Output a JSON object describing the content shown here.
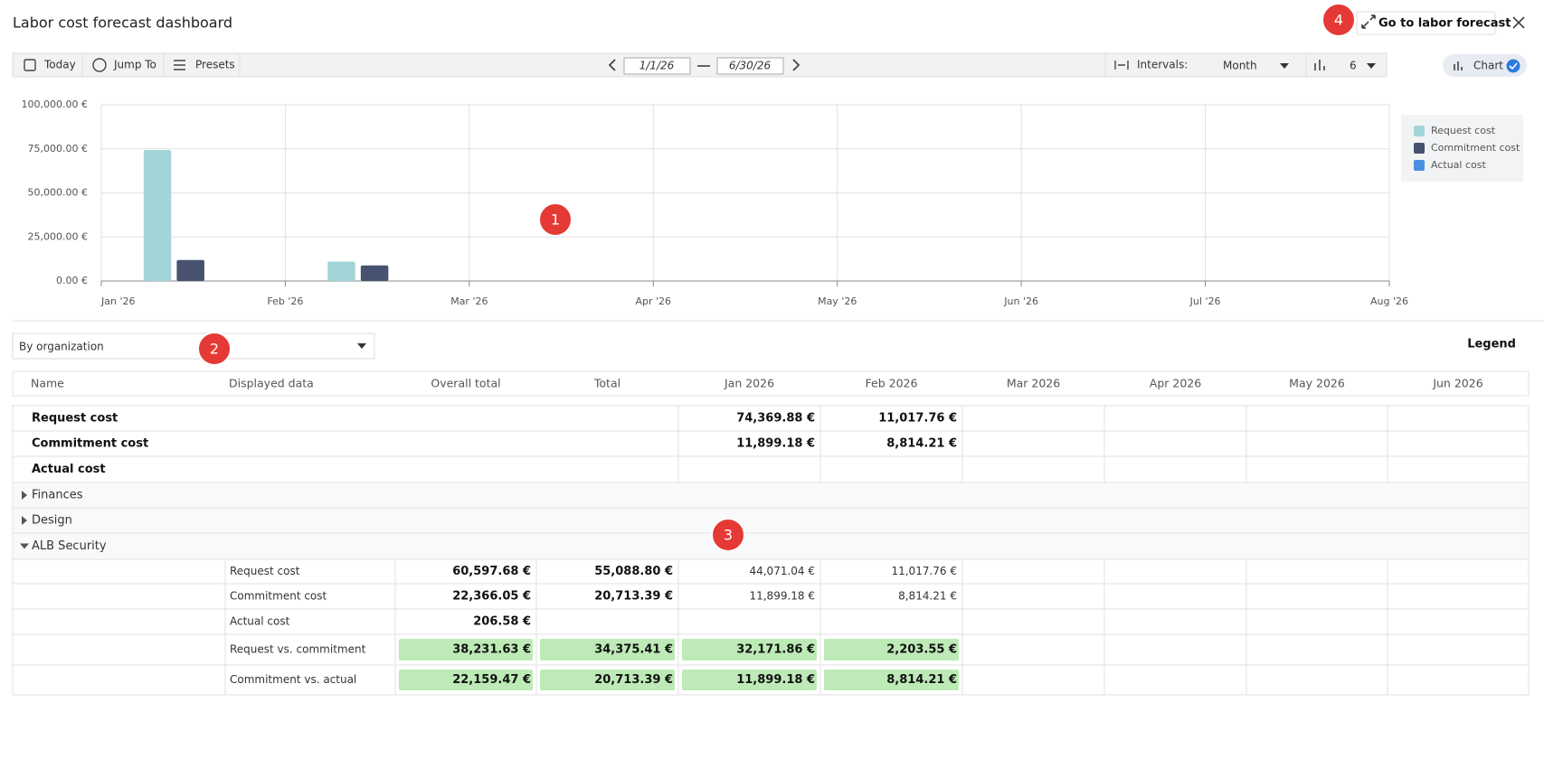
{
  "header": {
    "title": "Labor cost forecast dashboard",
    "go_button": "Go to labor forecast"
  },
  "toolbar": {
    "today": "Today",
    "jump_to": "Jump To",
    "presets": "Presets",
    "start_date": "1/1/26",
    "end_date": "6/30/26",
    "intervals_label": "Intervals:",
    "interval": "Month",
    "count": "6",
    "chart_toggle": "Chart"
  },
  "annotations": [
    "1",
    "2",
    "3",
    "4"
  ],
  "chart_data": {
    "type": "bar",
    "categories": [
      "Jan '26",
      "Feb '26",
      "Mar '26",
      "Apr '26",
      "May '26",
      "Jun '26",
      "Jul '26",
      "Aug '26"
    ],
    "series": [
      {
        "name": "Request cost",
        "color": "#a3d5d8",
        "values": [
          74369.88,
          11017.76,
          null,
          null,
          null,
          null,
          null,
          null
        ]
      },
      {
        "name": "Commitment cost",
        "color": "#46526f",
        "values": [
          11899.18,
          8814.21,
          null,
          null,
          null,
          null,
          null,
          null
        ]
      },
      {
        "name": "Actual cost",
        "color": "#4a8fe0",
        "values": [
          null,
          null,
          null,
          null,
          null,
          null,
          null,
          null
        ]
      }
    ],
    "ylim": [
      0,
      100000
    ],
    "yticks": [
      {
        "value": 0,
        "label": "0.00 €"
      },
      {
        "value": 25000,
        "label": "25,000.00 €"
      },
      {
        "value": 50000,
        "label": "50,000.00 €"
      },
      {
        "value": 75000,
        "label": "75,000.00 €"
      },
      {
        "value": 100000,
        "label": "100,000.00 €"
      }
    ],
    "grid": true,
    "legend": "right"
  },
  "grouping": {
    "selected": "By organization",
    "legend_link": "Legend"
  },
  "table": {
    "columns": [
      "Name",
      "Displayed data",
      "Overall total",
      "Total",
      "Jan 2026",
      "Feb 2026",
      "Mar 2026",
      "Apr 2026",
      "May 2026",
      "Jun 2026"
    ],
    "summary_rows": [
      [
        "Request cost",
        "74,369.88 €",
        "11,017.76 €"
      ],
      [
        "Commitment cost",
        "11,899.18 €",
        "8,814.21 €"
      ],
      [
        "Actual cost"
      ]
    ],
    "groups": [
      "Finances",
      "Design",
      "ALB Security"
    ],
    "detail_rows": [
      [
        "Request cost",
        "60,597.68 €",
        "55,088.80 €",
        "44,071.04 €",
        "11,017.76 €"
      ],
      [
        "Commitment cost",
        "22,366.05 €",
        "20,713.39 €",
        "11,899.18 €",
        "8,814.21 €"
      ],
      [
        "Actual cost",
        "206.58 €"
      ],
      [
        "Request vs. commitment",
        "38,231.63 €",
        "34,375.41 €",
        "32,171.86 €",
        "2,203.55 €"
      ],
      [
        "Commitment vs. actual",
        "22,159.47 €",
        "20,713.39 €",
        "11,899.18 €",
        "8,814.21 €"
      ]
    ]
  }
}
